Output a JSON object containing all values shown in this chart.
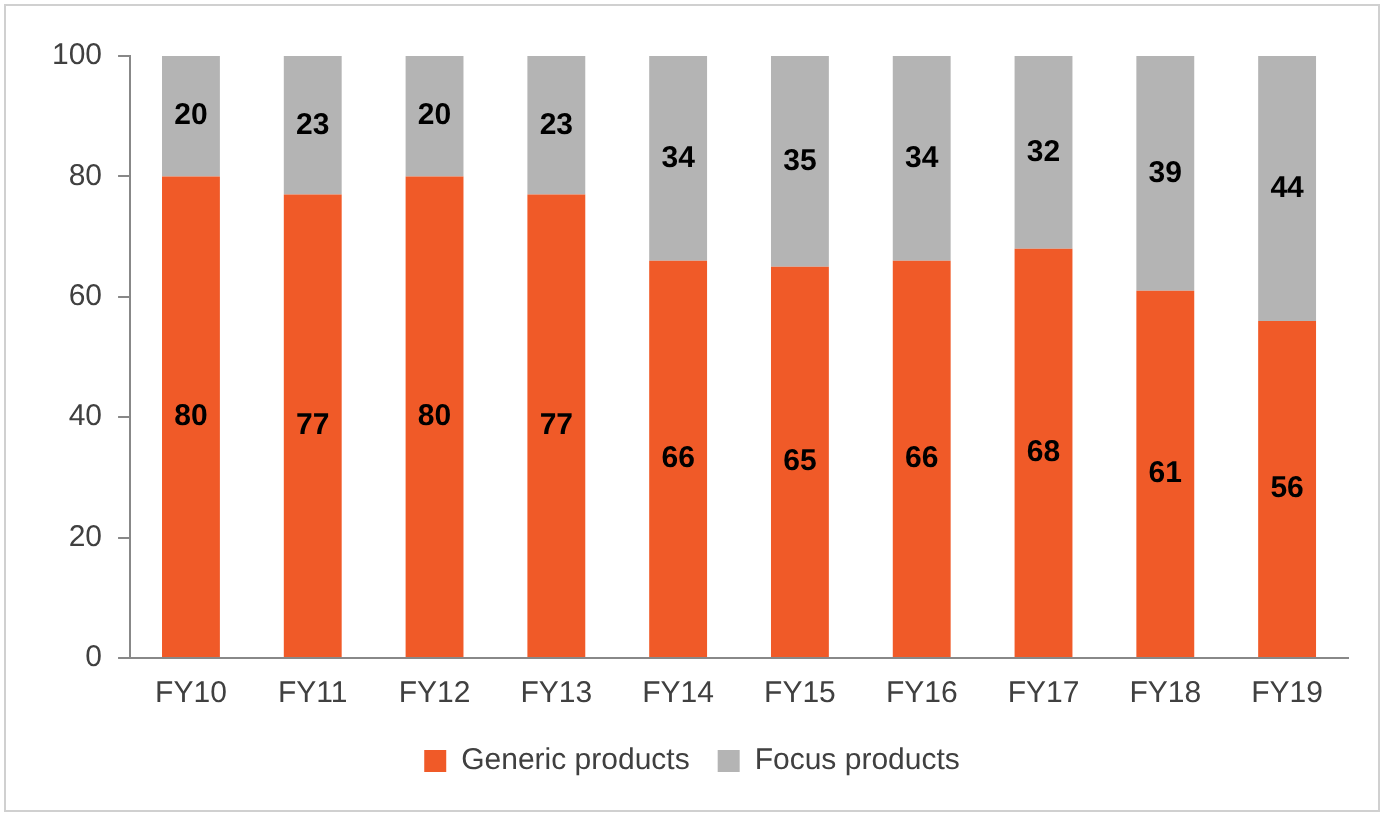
{
  "chart_data": {
    "type": "bar",
    "stacked": true,
    "categories": [
      "FY10",
      "FY11",
      "FY12",
      "FY13",
      "FY14",
      "FY15",
      "FY16",
      "FY17",
      "FY18",
      "FY19"
    ],
    "series": [
      {
        "name": "Generic products",
        "color": "#f05a28",
        "values": [
          80,
          77,
          80,
          77,
          66,
          65,
          66,
          68,
          61,
          56
        ]
      },
      {
        "name": "Focus products",
        "color": "#b4b4b4",
        "values": [
          20,
          23,
          20,
          23,
          34,
          35,
          34,
          32,
          39,
          44
        ]
      }
    ],
    "ylim": [
      0,
      100
    ],
    "yticks": [
      0,
      20,
      40,
      60,
      80,
      100
    ],
    "grid": false,
    "legend": "bottom",
    "data_labels": true
  }
}
